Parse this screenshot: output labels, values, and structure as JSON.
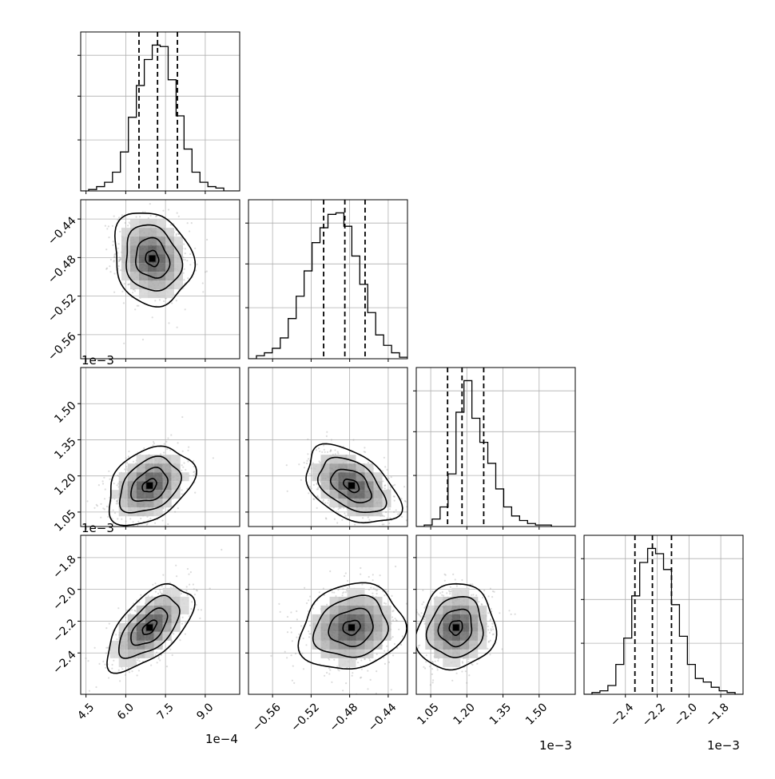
{
  "chart_data": {
    "type": "corner",
    "quantile_line_style": "dashed",
    "grid": true,
    "params": [
      {
        "range": [
          4.3,
          10.3
        ],
        "ticks": [
          4.5,
          6.0,
          7.5,
          9.0
        ],
        "tick_labels": [
          "4.5",
          "6.0",
          "7.5",
          "9.0"
        ],
        "offset_label": "1e−4",
        "quantiles": [
          6.5,
          7.2,
          7.95
        ],
        "hist_edges": [
          4.3,
          4.6,
          4.9,
          5.2,
          5.5,
          5.8,
          6.1,
          6.4,
          6.7,
          7.0,
          7.3,
          7.6,
          7.9,
          8.2,
          8.5,
          8.8,
          9.1,
          9.4,
          9.7,
          10.0,
          10.3
        ],
        "hist_counts": [
          0,
          1,
          3,
          6,
          13,
          27,
          51,
          73,
          91,
          101,
          100,
          77,
          52,
          29,
          13,
          6,
          3,
          2,
          0,
          0
        ]
      },
      {
        "range": [
          -0.585,
          -0.42
        ],
        "ticks": [
          -0.56,
          -0.52,
          -0.48,
          -0.44
        ],
        "tick_labels": [
          "−0.56",
          "−0.52",
          "−0.48",
          "−0.44"
        ],
        "offset_label": "1e−3",
        "quantiles": [
          -0.507,
          -0.485,
          -0.464
        ],
        "hist_edges": [
          -0.585,
          -0.57675,
          -0.5685,
          -0.56025,
          -0.552,
          -0.54375,
          -0.5355,
          -0.52725,
          -0.519,
          -0.51075,
          -0.5025,
          -0.49425,
          -0.486,
          -0.47775,
          -0.4695,
          -0.46125,
          -0.453,
          -0.44475,
          -0.4365,
          -0.42825,
          -0.42
        ],
        "hist_counts": [
          0,
          2,
          4,
          7,
          14,
          27,
          42,
          59,
          78,
          88,
          97,
          98,
          89,
          69,
          50,
          31,
          16,
          9,
          4,
          1
        ]
      },
      {
        "range": [
          0.99,
          1.65
        ],
        "ticks": [
          1.05,
          1.2,
          1.35,
          1.5
        ],
        "tick_labels": [
          "1.05",
          "1.20",
          "1.35",
          "1.50"
        ],
        "offset_label": "1e−3",
        "quantiles": [
          1.12,
          1.18,
          1.27
        ],
        "hist_edges": [
          0.99,
          1.023,
          1.056,
          1.089,
          1.122,
          1.155,
          1.188,
          1.221,
          1.254,
          1.287,
          1.32,
          1.353,
          1.386,
          1.419,
          1.452,
          1.485,
          1.518,
          1.551,
          1.584,
          1.617,
          1.65
        ],
        "hist_counts": [
          0,
          1,
          5,
          13,
          35,
          76,
          97,
          72,
          56,
          42,
          25,
          13,
          7,
          4,
          2,
          1,
          1,
          0,
          0,
          0
        ]
      },
      {
        "range": [
          -2.66,
          -1.66
        ],
        "ticks": [
          -2.4,
          -2.2,
          -2.0,
          -1.8
        ],
        "tick_labels": [
          "−2.4",
          "−2.2",
          "−2.0",
          "−1.8"
        ],
        "offset_label": "1e−3",
        "quantiles": [
          -2.34,
          -2.23,
          -2.11
        ],
        "hist_edges": [
          -2.66,
          -2.61,
          -2.56,
          -2.51,
          -2.46,
          -2.41,
          -2.36,
          -2.31,
          -2.26,
          -2.21,
          -2.16,
          -2.11,
          -2.06,
          -2.01,
          -1.96,
          -1.91,
          -1.86,
          -1.81,
          -1.76,
          -1.71,
          -1.66
        ],
        "hist_counts": [
          0,
          1,
          2,
          5,
          17,
          32,
          56,
          75,
          83,
          80,
          71,
          51,
          33,
          17,
          9,
          7,
          4,
          2,
          1,
          0
        ]
      }
    ],
    "pairs": [
      {
        "row": 1,
        "col": 0,
        "mode": [
          7.0,
          -0.481
        ],
        "sx": 0.55,
        "sy": 0.018,
        "rho": -0.15
      },
      {
        "row": 2,
        "col": 0,
        "mode": [
          6.9,
          1.16
        ],
        "sx": 0.6,
        "sy": 0.06,
        "rho": 0.35
      },
      {
        "row": 2,
        "col": 1,
        "mode": [
          -0.478,
          1.16
        ],
        "sx": 0.018,
        "sy": 0.06,
        "rho": -0.45
      },
      {
        "row": 3,
        "col": 0,
        "mode": [
          6.9,
          -2.24
        ],
        "sx": 0.6,
        "sy": 0.1,
        "rho": 0.6
      },
      {
        "row": 3,
        "col": 1,
        "mode": [
          -0.478,
          -2.24
        ],
        "sx": 0.02,
        "sy": 0.1,
        "rho": 0.15
      },
      {
        "row": 3,
        "col": 2,
        "mode": [
          1.155,
          -2.24
        ],
        "sx": 0.06,
        "sy": 0.1,
        "rho": 0.1
      }
    ]
  }
}
